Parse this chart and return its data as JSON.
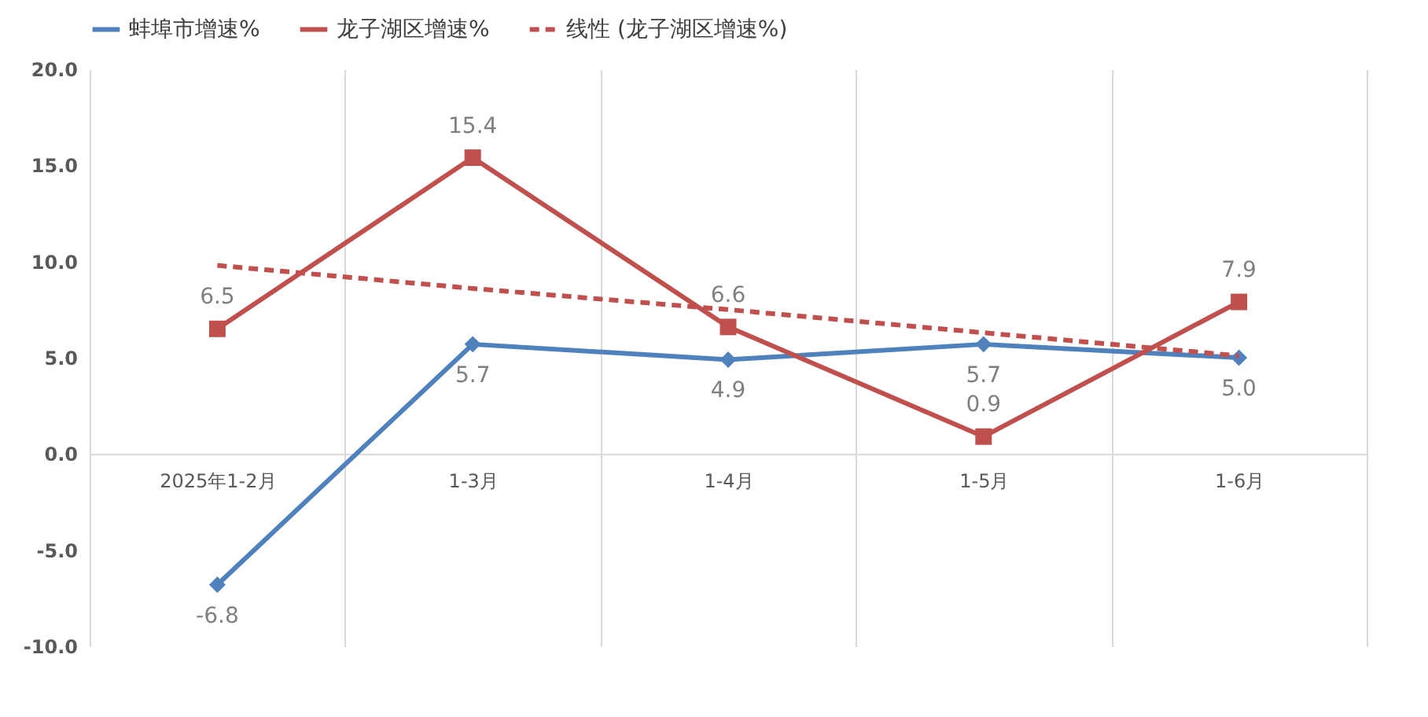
{
  "chart_data": {
    "type": "line",
    "categories": [
      "2025年1-2月",
      "1-3月",
      "1-4月",
      "1-5月",
      "1-6月"
    ],
    "series": [
      {
        "name": "蚌埠市增速%",
        "color": "#4f81bd",
        "marker": "diamond",
        "values": [
          -6.8,
          5.7,
          4.9,
          5.7,
          5.0
        ],
        "value_labels": [
          "-6.8",
          "5.7",
          "4.9",
          "5.7",
          "5.0"
        ]
      },
      {
        "name": "龙子湖区增速%",
        "color": "#c0504d",
        "marker": "square",
        "values": [
          6.5,
          15.4,
          6.6,
          0.9,
          7.9
        ],
        "value_labels": [
          "6.5",
          "15.4",
          "6.6",
          "0.9",
          "7.9"
        ]
      },
      {
        "name": "线性 (龙子湖区增速%)",
        "type": "line",
        "color": "#c0504d",
        "marker": "none",
        "line_style": "dashed",
        "values": [
          9.8,
          8.6,
          7.5,
          6.3,
          5.1
        ]
      }
    ],
    "ylim": [
      -10,
      20
    ],
    "yticks": [
      {
        "value": -10,
        "label": "-10.0"
      },
      {
        "value": -5,
        "label": "-5.0"
      },
      {
        "value": 0,
        "label": "0.0"
      },
      {
        "value": 5,
        "label": "5.0"
      },
      {
        "value": 10,
        "label": "10.0"
      },
      {
        "value": 15,
        "label": "15.0"
      },
      {
        "value": 20,
        "label": "20.0"
      }
    ],
    "grid": "x",
    "legend": "top"
  }
}
